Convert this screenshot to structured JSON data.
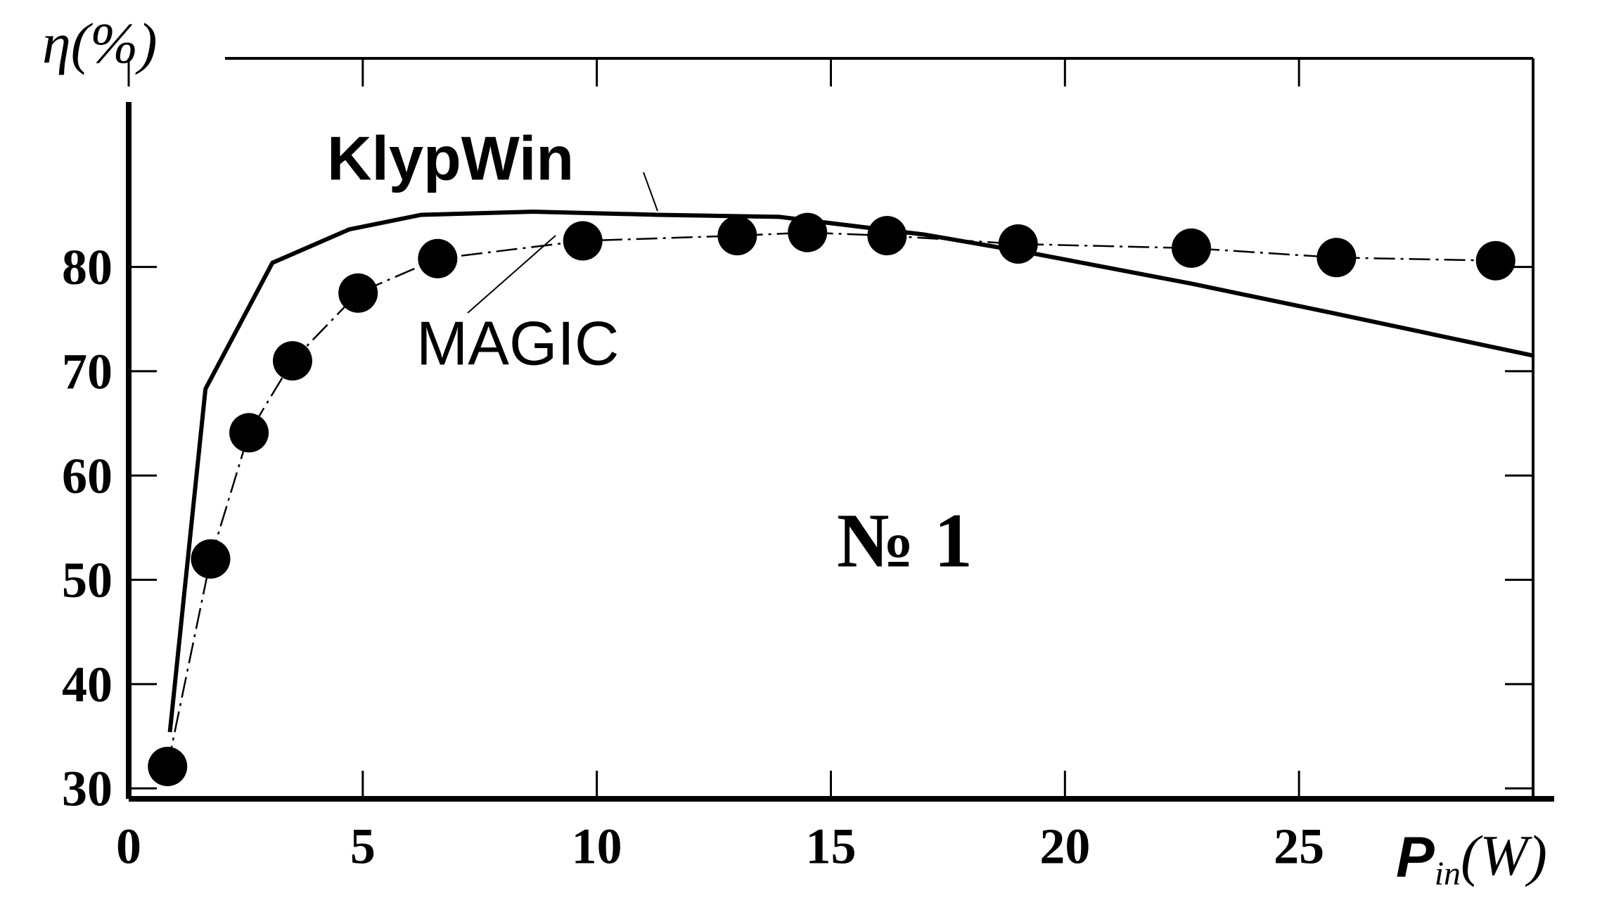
{
  "chart_data": {
    "type": "line",
    "y_label": "η(%)",
    "x_label": {
      "symbol": "P",
      "subscript": "in",
      "unit": "(W)"
    },
    "annotations": [
      "KlypWin",
      "MAGIC",
      "№ 1"
    ],
    "xlim": [
      0,
      30
    ],
    "xticks": [
      0,
      5,
      10,
      15,
      20,
      25
    ],
    "ylim": [
      29,
      100
    ],
    "yticks": [
      30,
      40,
      50,
      60,
      70,
      80
    ],
    "series": [
      {
        "name": "KlypWin",
        "color": "#000000",
        "style": "solid",
        "x": [
          0.88,
          1.64,
          3.07,
          4.71,
          6.25,
          8.66,
          11.3,
          13.9,
          17.0,
          19.2,
          22.7,
          25.8,
          30.0
        ],
        "values": [
          35.4,
          68.3,
          80.4,
          83.6,
          85.0,
          85.3,
          85.0,
          84.8,
          83.1,
          81.4,
          78.4,
          75.5,
          71.5
        ]
      },
      {
        "name": "MAGIC",
        "color": "#000000",
        "style": "dashdot-markers",
        "x": [
          0.83,
          1.75,
          2.57,
          3.5,
          4.9,
          6.6,
          9.7,
          13.0,
          14.5,
          16.2,
          19.0,
          22.7,
          25.8,
          29.2
        ],
        "values": [
          32.1,
          52.0,
          64.1,
          71.0,
          77.5,
          80.8,
          82.5,
          83.0,
          83.3,
          83.0,
          82.2,
          81.8,
          80.9,
          80.6
        ]
      }
    ]
  }
}
